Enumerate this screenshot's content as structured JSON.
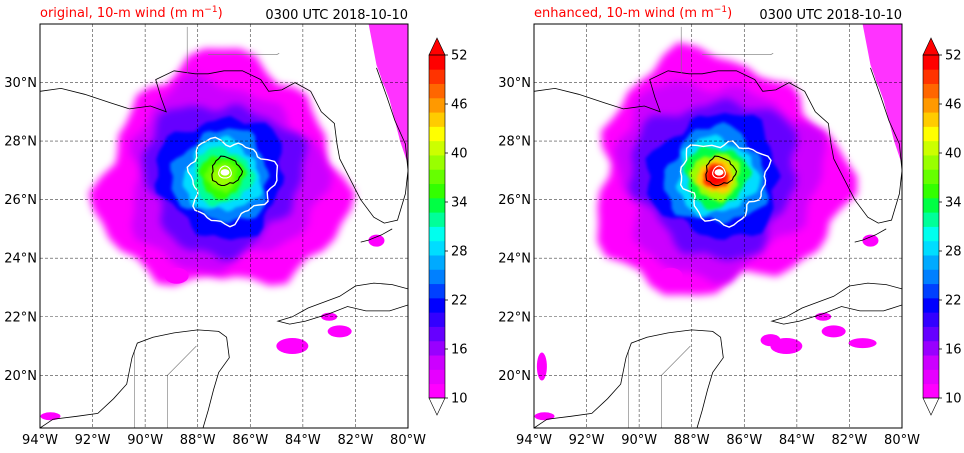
{
  "panels": [
    {
      "id": "original",
      "title_left": "original, 10-m wind (m m",
      "title_left_sup": "−1",
      "title_left_close": ")",
      "title_right": "0300 UTC 2018-10-10",
      "enhanced": false
    },
    {
      "id": "enhanced",
      "title_left": "enhanced, 10-m wind (m m",
      "title_left_sup": "−1",
      "title_left_close": ")",
      "title_right": "0300 UTC 2018-10-10",
      "enhanced": true
    }
  ],
  "map": {
    "lon_range": [
      -94,
      -80
    ],
    "lat_range": [
      18.2,
      32.0
    ],
    "lon_ticks": [
      -94,
      -92,
      -90,
      -88,
      -86,
      -84,
      -82,
      -80
    ],
    "lon_labels": [
      "94°W",
      "92°W",
      "90°W",
      "88°W",
      "86°W",
      "84°W",
      "82°W",
      "80°W"
    ],
    "lat_ticks": [
      20,
      22,
      24,
      26,
      28,
      30
    ],
    "lat_labels": [
      "20°N",
      "22°N",
      "24°N",
      "26°N",
      "28°N",
      "30°N"
    ],
    "storm_center": {
      "lon": -87.0,
      "lat": 27.0
    }
  },
  "colorbar": {
    "min": 10,
    "max": 52,
    "step": 2,
    "labels": [
      "10",
      "16",
      "22",
      "28",
      "34",
      "40",
      "46",
      "52"
    ],
    "colors": [
      "#ff00ff",
      "#e600ff",
      "#cc00ff",
      "#9900ff",
      "#6600ff",
      "#3300ff",
      "#0000ff",
      "#0040ff",
      "#0080ff",
      "#00aaff",
      "#00ddff",
      "#00ffee",
      "#00ff99",
      "#00ff44",
      "#33ff00",
      "#66ff00",
      "#99ff00",
      "#ccff00",
      "#ffff00",
      "#ffcc00",
      "#ff9900",
      "#ff6600",
      "#ff3300",
      "#ff0000"
    ],
    "under_color": "#ffffff",
    "over_color": "#ff0000"
  }
}
